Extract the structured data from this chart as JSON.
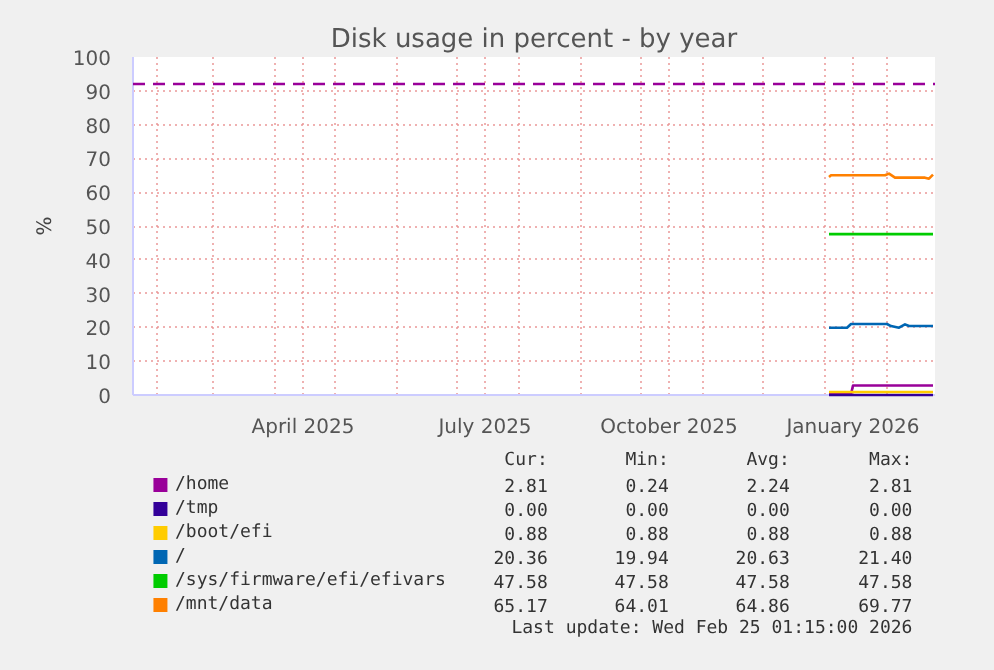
{
  "chart_data": {
    "type": "line",
    "title": "Disk usage in percent - by year",
    "ylabel": "%",
    "xlim": [
      "2025-01-20",
      "2026-02-25"
    ],
    "ylim": [
      0,
      100
    ],
    "yticks": [
      0,
      10,
      20,
      30,
      40,
      50,
      60,
      70,
      80,
      90,
      100
    ],
    "xticks": [
      {
        "value": "2025-02-01",
        "label": null
      },
      {
        "value": "2025-03-01",
        "label": null
      },
      {
        "value": "2025-04-01",
        "label": null
      },
      {
        "value": "2025-04-15",
        "label": "April 2025"
      },
      {
        "value": "2025-05-01",
        "label": null
      },
      {
        "value": "2025-06-01",
        "label": null
      },
      {
        "value": "2025-07-01",
        "label": null
      },
      {
        "value": "2025-07-15",
        "label": "July 2025"
      },
      {
        "value": "2025-08-01",
        "label": null
      },
      {
        "value": "2025-09-01",
        "label": null
      },
      {
        "value": "2025-10-01",
        "label": null
      },
      {
        "value": "2025-10-15",
        "label": "October 2025"
      },
      {
        "value": "2025-11-01",
        "label": null
      },
      {
        "value": "2025-12-01",
        "label": null
      },
      {
        "value": "2026-01-01",
        "label": null
      },
      {
        "value": "2026-01-15",
        "label": "January 2026"
      },
      {
        "value": "2026-02-01",
        "label": null
      }
    ],
    "grid": true,
    "legend": "bottom",
    "ref_lines": [
      {
        "axis": "y",
        "value": 92,
        "label": null,
        "color": "#990099",
        "line_style": "dashed"
      }
    ],
    "series": [
      {
        "name": "/home",
        "color": "#990099",
        "x": [
          "2026-01-03",
          "2026-01-14",
          "2026-01-15",
          "2026-02-24"
        ],
        "values": [
          0.2,
          0.2,
          2.8,
          2.8
        ]
      },
      {
        "name": "/tmp",
        "color": "#330099",
        "x": [
          "2026-01-03",
          "2026-02-24"
        ],
        "values": [
          0.0,
          0.0
        ]
      },
      {
        "name": "/boot/efi",
        "color": "#ffcc00",
        "x": [
          "2026-01-03",
          "2026-02-24"
        ],
        "values": [
          0.9,
          0.9
        ]
      },
      {
        "name": "/",
        "color": "#0066b3",
        "x": [
          "2026-01-03",
          "2026-01-12",
          "2026-01-14",
          "2026-02-01",
          "2026-02-03",
          "2026-02-07",
          "2026-02-10",
          "2026-02-12",
          "2026-02-24"
        ],
        "values": [
          19.9,
          19.9,
          21.0,
          21.0,
          20.4,
          19.9,
          20.9,
          20.4,
          20.4
        ]
      },
      {
        "name": "/sys/firmware/efi/efivars",
        "color": "#00cc00",
        "x": [
          "2026-01-03",
          "2026-02-24"
        ],
        "values": [
          47.6,
          47.6
        ]
      },
      {
        "name": "/mnt/data",
        "color": "#ff8000",
        "x": [
          "2026-01-03",
          "2026-01-04",
          "2026-01-31",
          "2026-02-02",
          "2026-02-05",
          "2026-02-20",
          "2026-02-22",
          "2026-02-24"
        ],
        "values": [
          64.5,
          65.0,
          65.0,
          65.5,
          64.3,
          64.3,
          64.0,
          65.2
        ]
      }
    ],
    "annotations": [
      "Cur:",
      "Min:",
      "Avg:",
      "Max:",
      "2.81",
      "0.24",
      "2.24",
      "2.81",
      "0.00",
      "0.00",
      "0.00",
      "0.00",
      "0.88",
      "0.88",
      "0.88",
      "0.88",
      "20.36",
      "19.94",
      "20.63",
      "21.40",
      "47.58",
      "47.58",
      "47.58",
      "47.58",
      "65.17",
      "64.01",
      "64.86",
      "69.77",
      "Last update: Wed Feb 25 01:15:00 2026"
    ]
  }
}
